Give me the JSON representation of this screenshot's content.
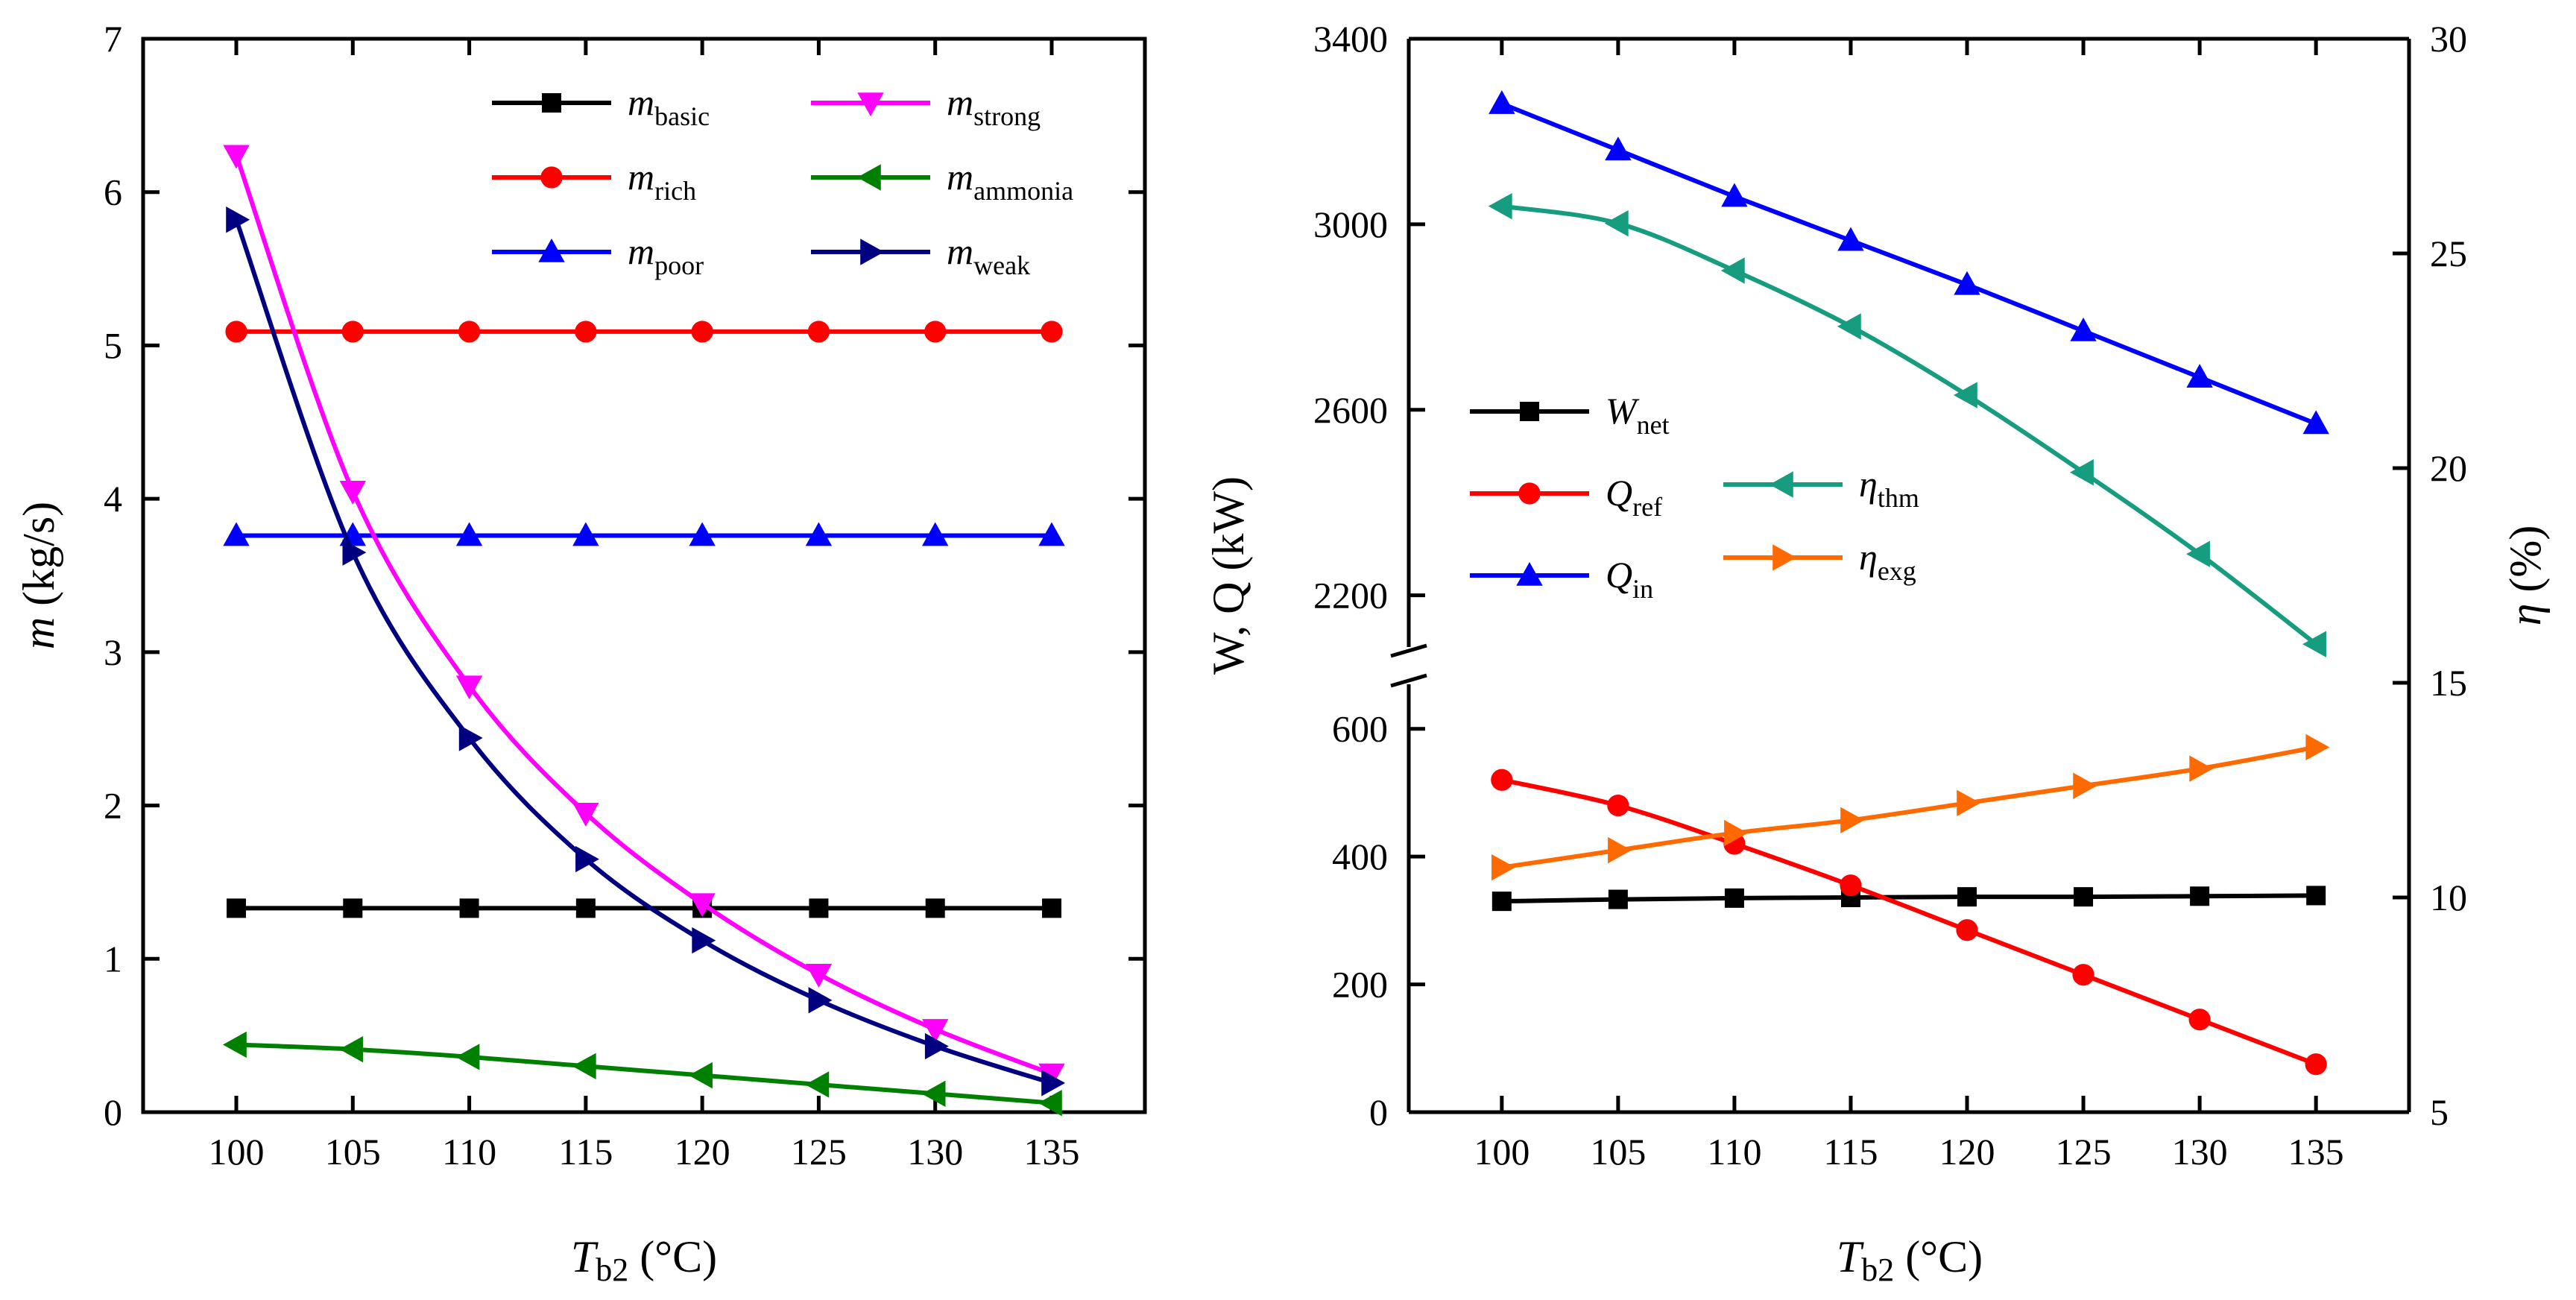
{
  "chart_data": [
    {
      "type": "line",
      "x": [
        100,
        105,
        110,
        115,
        120,
        125,
        130,
        135
      ],
      "xlabel": {
        "main": "T",
        "sub": "b2",
        "unit": " (°C)"
      },
      "ylabel": {
        "main": "m",
        "unit": " (kg/s)"
      },
      "xlim": [
        96,
        139
      ],
      "ylim": [
        0,
        7
      ],
      "xticks": [
        100,
        105,
        110,
        115,
        120,
        125,
        130,
        135
      ],
      "yticks": [
        0,
        1,
        2,
        3,
        4,
        5,
        6,
        7
      ],
      "legend_placement": "top-right",
      "grid": false,
      "series": [
        {
          "key": "basic",
          "main": "m",
          "sub": "basic",
          "color": "#000000",
          "marker": "square",
          "values": [
            1.33,
            1.33,
            1.33,
            1.33,
            1.33,
            1.33,
            1.33,
            1.33
          ]
        },
        {
          "key": "rich",
          "main": "m",
          "sub": "rich",
          "color": "#ff0000",
          "marker": "circle",
          "values": [
            5.09,
            5.09,
            5.09,
            5.09,
            5.09,
            5.09,
            5.09,
            5.09
          ]
        },
        {
          "key": "poor",
          "main": "m",
          "sub": "poor",
          "color": "#0000ff",
          "marker": "triangle-up",
          "values": [
            3.76,
            3.76,
            3.76,
            3.76,
            3.76,
            3.76,
            3.76,
            3.76
          ]
        },
        {
          "key": "strong",
          "main": "m",
          "sub": "strong",
          "color": "#ff00ff",
          "marker": "triangle-down",
          "values": [
            6.24,
            4.05,
            2.78,
            1.95,
            1.36,
            0.9,
            0.54,
            0.25
          ]
        },
        {
          "key": "ammonia",
          "main": "m",
          "sub": "ammonia",
          "color": "#008000",
          "marker": "triangle-left",
          "values": [
            0.44,
            0.41,
            0.36,
            0.3,
            0.24,
            0.18,
            0.12,
            0.06
          ]
        },
        {
          "key": "weak",
          "main": "m",
          "sub": "weak",
          "color": "#000080",
          "marker": "triangle-right",
          "values": [
            5.82,
            3.65,
            2.44,
            1.65,
            1.12,
            0.73,
            0.43,
            0.19
          ]
        }
      ]
    },
    {
      "type": "line",
      "x": [
        100,
        105,
        110,
        115,
        120,
        125,
        130,
        135
      ],
      "xlabel": {
        "main": "T",
        "sub": "b2",
        "unit": " (°C)"
      },
      "ylabel_left": {
        "text": "W, Q (kW)"
      },
      "ylabel_right": {
        "main": "η",
        "unit": " (%)"
      },
      "xlim": [
        96,
        139
      ],
      "ylim_left_lower": [
        0,
        700
      ],
      "ylim_left_upper": [
        2050,
        3400
      ],
      "ylim_right": [
        5,
        30
      ],
      "xticks": [
        100,
        105,
        110,
        115,
        120,
        125,
        130,
        135
      ],
      "yticks_left": [
        0,
        200,
        400,
        600,
        2200,
        2600,
        3000,
        3400
      ],
      "yticks_right": [
        5,
        10,
        15,
        20,
        25,
        30
      ],
      "axis_break": true,
      "legend_placement": "middle-left",
      "grid": false,
      "series": [
        {
          "key": "wnet",
          "main": "W",
          "sub": "net",
          "axis": "left",
          "color": "#000000",
          "marker": "square",
          "values": [
            330,
            333,
            335,
            336,
            337,
            337,
            338,
            339
          ]
        },
        {
          "key": "qref",
          "main": "Q",
          "sub": "ref",
          "axis": "left",
          "color": "#ff0000",
          "marker": "circle",
          "values": [
            520,
            480,
            420,
            355,
            285,
            215,
            145,
            75
          ]
        },
        {
          "key": "qin",
          "main": "Q",
          "sub": "in",
          "axis": "left",
          "color": "#0000ff",
          "marker": "triangle-up",
          "values": [
            3260,
            3160,
            3060,
            2965,
            2870,
            2770,
            2670,
            2570
          ]
        },
        {
          "key": "ethm",
          "main": "η",
          "sub": "thm",
          "axis": "right",
          "color": "#169c7e",
          "marker": "triangle-left",
          "values": [
            26.1,
            25.7,
            24.6,
            23.3,
            21.7,
            19.9,
            18.0,
            15.9
          ]
        },
        {
          "key": "eexg",
          "main": "η",
          "sub": "exg",
          "axis": "right",
          "color": "#ff6a00",
          "marker": "triangle-right",
          "values": [
            10.7,
            11.1,
            11.5,
            11.8,
            12.2,
            12.6,
            13.0,
            13.5
          ]
        }
      ]
    }
  ]
}
